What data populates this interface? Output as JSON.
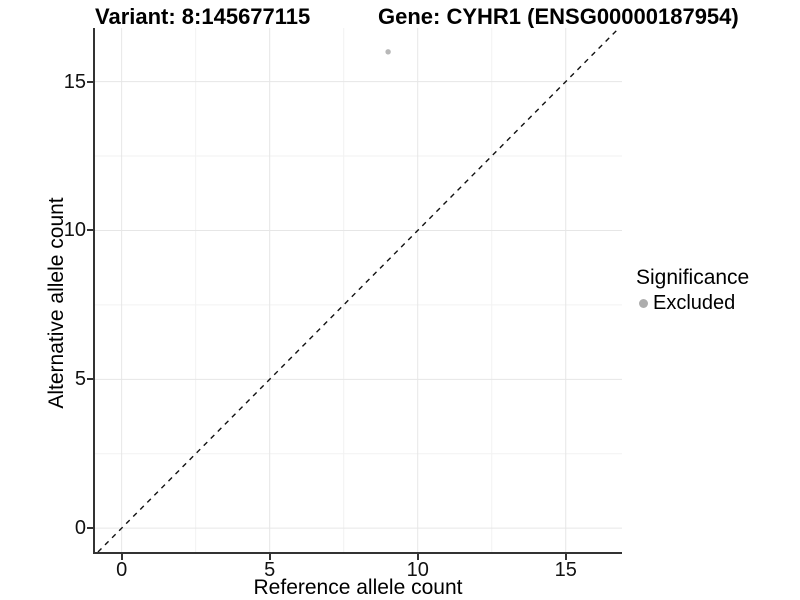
{
  "header": {
    "variant_title": "Variant: 8:145677115",
    "gene_title": "Gene: CYHR1 (ENSG00000187954)"
  },
  "legend": {
    "title": "Significance",
    "items": [
      {
        "label": "Excluded",
        "color": "#adadad"
      }
    ]
  },
  "colors": {
    "axis_line": "#333333",
    "grid_major": "#e6e6e6",
    "grid_minor": "#f2f2f2",
    "identity_line": "#111111",
    "point": "#b8b8b8"
  },
  "chart_data": {
    "type": "scatter",
    "title": "Variant: 8:145677115 | Gene: CYHR1 (ENSG00000187954)",
    "xlabel": "Reference allele count",
    "ylabel": "Alternative allele count",
    "xlim": [
      -0.9,
      16.9
    ],
    "ylim": [
      -0.8,
      16.8
    ],
    "x_ticks": [
      0,
      5,
      10,
      15
    ],
    "y_ticks": [
      0,
      5,
      10,
      15
    ],
    "x_minor_ticks": [
      2.5,
      7.5,
      12.5
    ],
    "y_minor_ticks": [
      2.5,
      7.5,
      12.5
    ],
    "grid": true,
    "legend_position": "right",
    "series": [
      {
        "name": "Excluded",
        "points": [
          {
            "x": 9,
            "y": 16
          }
        ]
      }
    ],
    "reference_line": {
      "kind": "identity",
      "slope": 1,
      "intercept": 0,
      "style": "dashed"
    }
  }
}
